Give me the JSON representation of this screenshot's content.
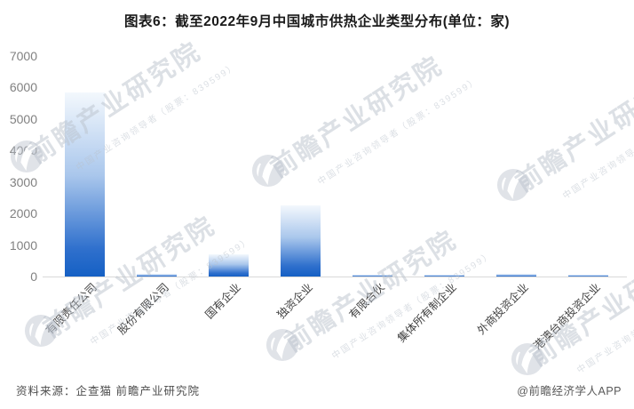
{
  "page": {
    "title": "图表6：截至2022年9月中国城市供热企业类型分布(单位：家)",
    "source": "资料来源：企查猫 前瞻产业研究院",
    "credit": "@前瞻经济学人APP"
  },
  "watermark": {
    "text": "前瞻产业研究院",
    "subtext": "中国产业咨询领导者（股票：839599）"
  },
  "colors": {
    "bar_top": "#f3f8fd",
    "bar_mid": "#aac7ec",
    "bar_low": "#2f70cd",
    "bar_bottom": "#1560c4",
    "axis_line": "#d9d9d9",
    "tick_label": "#818181",
    "category_label": "#434343",
    "watermark_text": "rgba(186,193,204,0.5)",
    "watermark_logo": "rgba(186,193,204,0.45)"
  },
  "chart_data": {
    "type": "bar",
    "title": "图表6：截至2022年9月中国城市供热企业类型分布(单位：家)",
    "unit": "家",
    "categories": [
      "有限责任公司",
      "股份有限公司",
      "国有企业",
      "独资企业",
      "有限合伙",
      "集体所有制企业",
      "外商投资企业",
      "港澳台商投资企业"
    ],
    "values": [
      5850,
      75,
      700,
      2250,
      50,
      50,
      85,
      50
    ],
    "xlabel": "",
    "ylabel": "",
    "ylim": [
      0,
      7000
    ],
    "ytick_step": 1000,
    "grid": false,
    "legend": false,
    "bar_style": "vertical-gradient-blue"
  }
}
